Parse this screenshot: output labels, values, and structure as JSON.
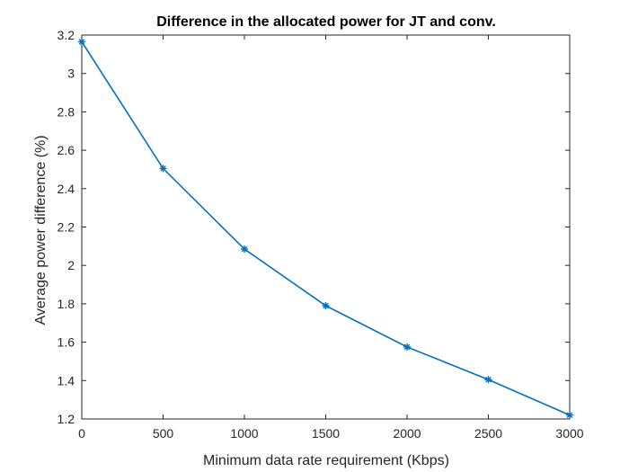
{
  "chart_data": {
    "type": "line",
    "title": "Difference in the allocated power for JT and conv.",
    "xlabel": "Minimum data rate requirement (Kbps)",
    "ylabel": "Average power difference (%)",
    "xlim": [
      0,
      3000
    ],
    "ylim": [
      1.2,
      3.2
    ],
    "xticks": [
      0,
      500,
      1000,
      1500,
      2000,
      2500,
      3000
    ],
    "xtick_labels": [
      "0",
      "500",
      "1000",
      "1500",
      "2000",
      "2500",
      "3000"
    ],
    "yticks": [
      1.2,
      1.4,
      1.6,
      1.8,
      2.0,
      2.2,
      2.4,
      2.6,
      2.8,
      3.0,
      3.2
    ],
    "ytick_labels": [
      "1.2",
      "1.4",
      "1.6",
      "1.8",
      "2",
      "2.2",
      "2.4",
      "2.6",
      "2.8",
      "3",
      "3.2"
    ],
    "grid": false,
    "box": true,
    "series": [
      {
        "color": "#0072BD",
        "marker": "asterisk",
        "x": [
          0,
          500,
          1000,
          1500,
          2000,
          2500,
          3000
        ],
        "y": [
          3.165,
          2.505,
          2.085,
          1.79,
          1.575,
          1.405,
          1.22
        ]
      }
    ]
  }
}
